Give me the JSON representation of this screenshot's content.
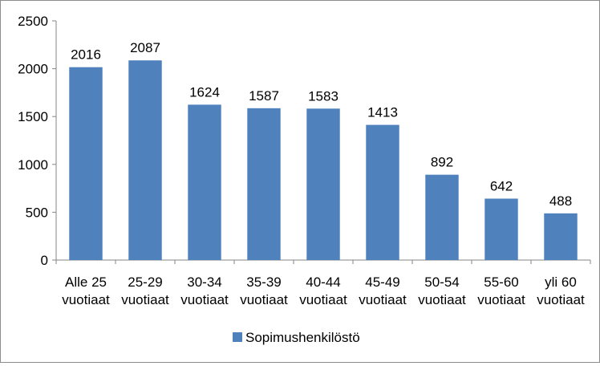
{
  "chart_data": {
    "type": "bar",
    "title": "",
    "xlabel": "",
    "ylabel": "",
    "categories": [
      [
        "Alle 25",
        "vuotiaat"
      ],
      [
        "25-29",
        "vuotiaat"
      ],
      [
        "30-34",
        "vuotiaat"
      ],
      [
        "35-39",
        "vuotiaat"
      ],
      [
        "40-44",
        "vuotiaat"
      ],
      [
        "45-49",
        "vuotiaat"
      ],
      [
        "50-54",
        "vuotiaat"
      ],
      [
        "55-60",
        "vuotiaat"
      ],
      [
        "yli 60",
        "vuotiaat"
      ]
    ],
    "series": [
      {
        "name": "Sopimushenkilöstö",
        "color": "#4f81bd",
        "values": [
          2016,
          2087,
          1624,
          1587,
          1583,
          1413,
          892,
          642,
          488
        ]
      }
    ],
    "ylim": [
      0,
      2500
    ],
    "yticks": [
      0,
      500,
      1000,
      1500,
      2000,
      2500
    ],
    "grid": false,
    "data_labels": true,
    "legend_position": "bottom"
  }
}
